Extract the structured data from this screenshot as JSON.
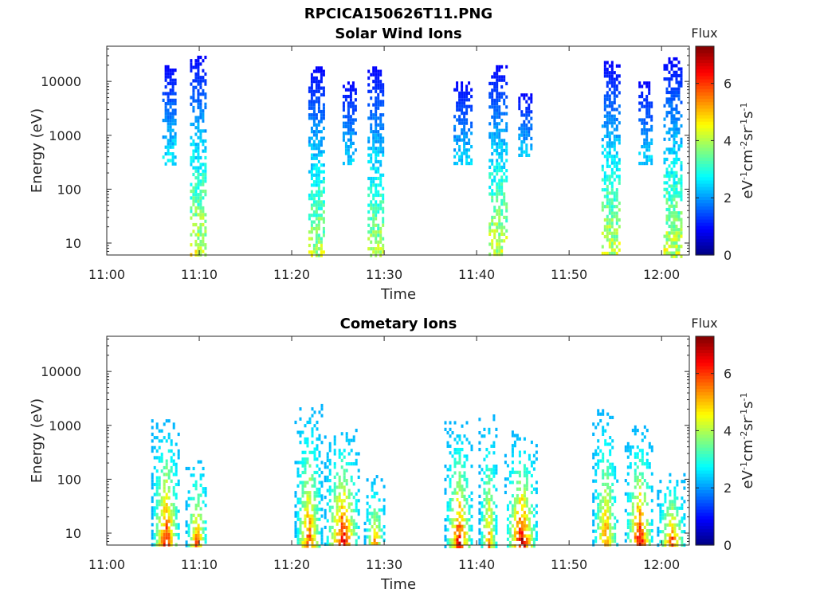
{
  "figure_title": "RPCICA150626T11.PNG",
  "chart_data": [
    {
      "type": "heatmap",
      "title": "Solar Wind Ions",
      "xlabel": "Time",
      "ylabel": "Energy (eV)",
      "y_scale": "log",
      "ylim": [
        6,
        45000
      ],
      "xlim": [
        "11:00",
        "12:03"
      ],
      "x_ticks": [
        "11:00",
        "11:10",
        "11:20",
        "11:30",
        "11:40",
        "11:50",
        "12:00"
      ],
      "y_ticks": [
        "10",
        "100",
        "1000",
        "10000"
      ],
      "colorbar": {
        "title": "Flux",
        "label": "eV-1cm-2sr-1s-1",
        "range": [
          0,
          7.3
        ],
        "ticks": [
          "0",
          "2",
          "4",
          "6"
        ],
        "colormap": "jet"
      },
      "bursts": [
        {
          "start_min": 9.0,
          "end_min": 10.8,
          "emin": 6,
          "emax": 30000,
          "peak_flux": 4.5
        },
        {
          "start_min": 6.0,
          "end_min": 7.5,
          "emin": 300,
          "emax": 20000,
          "peak_flux": 2.8
        },
        {
          "start_min": 21.8,
          "end_min": 23.6,
          "emin": 6,
          "emax": 19000,
          "peak_flux": 4.2
        },
        {
          "start_min": 25.5,
          "end_min": 27.0,
          "emin": 300,
          "emax": 10000,
          "peak_flux": 2.6
        },
        {
          "start_min": 28.2,
          "end_min": 30.0,
          "emin": 6,
          "emax": 19000,
          "peak_flux": 4.2
        },
        {
          "start_min": 37.5,
          "end_min": 39.5,
          "emin": 300,
          "emax": 10000,
          "peak_flux": 2.6
        },
        {
          "start_min": 41.3,
          "end_min": 43.2,
          "emin": 6,
          "emax": 20000,
          "peak_flux": 4.4
        },
        {
          "start_min": 44.5,
          "end_min": 46.0,
          "emin": 400,
          "emax": 6000,
          "peak_flux": 2.6
        },
        {
          "start_min": 53.5,
          "end_min": 55.5,
          "emin": 6,
          "emax": 24000,
          "peak_flux": 4.4
        },
        {
          "start_min": 57.5,
          "end_min": 59.0,
          "emin": 300,
          "emax": 10000,
          "peak_flux": 2.6
        },
        {
          "start_min": 60.2,
          "end_min": 62.2,
          "emin": 6,
          "emax": 28000,
          "peak_flux": 4.4
        }
      ]
    },
    {
      "type": "heatmap",
      "title": "Cometary Ions",
      "xlabel": "Time",
      "ylabel": "Energy (eV)",
      "y_scale": "log",
      "ylim": [
        6,
        45000
      ],
      "xlim": [
        "11:00",
        "12:03"
      ],
      "x_ticks": [
        "11:00",
        "11:10",
        "11:20",
        "11:30",
        "11:40",
        "11:50",
        "12:00"
      ],
      "y_ticks": [
        "10",
        "100",
        "1000",
        "10000"
      ],
      "colorbar": {
        "title": "Flux",
        "label": "eV-1cm-2sr-1s-1",
        "range": [
          0,
          7.3
        ],
        "ticks": [
          "0",
          "2",
          "4",
          "6"
        ],
        "colormap": "jet"
      },
      "bursts": [
        {
          "start_min": 4.8,
          "end_min": 7.8,
          "emin": 6,
          "emax": 1300,
          "peak_flux": 7.0
        },
        {
          "start_min": 8.5,
          "end_min": 10.8,
          "emin": 6,
          "emax": 300,
          "peak_flux": 6.2
        },
        {
          "start_min": 20.3,
          "end_min": 23.2,
          "emin": 6,
          "emax": 2500,
          "peak_flux": 6.2
        },
        {
          "start_min": 23.5,
          "end_min": 27.3,
          "emin": 6,
          "emax": 1000,
          "peak_flux": 7.0
        },
        {
          "start_min": 27.8,
          "end_min": 30.0,
          "emin": 6,
          "emax": 120,
          "peak_flux": 5.8
        },
        {
          "start_min": 36.5,
          "end_min": 39.5,
          "emin": 6,
          "emax": 1200,
          "peak_flux": 6.8
        },
        {
          "start_min": 40.2,
          "end_min": 42.2,
          "emin": 6,
          "emax": 1600,
          "peak_flux": 5.6
        },
        {
          "start_min": 43.0,
          "end_min": 46.5,
          "emin": 6,
          "emax": 800,
          "peak_flux": 7.2
        },
        {
          "start_min": 52.5,
          "end_min": 55.2,
          "emin": 6,
          "emax": 2000,
          "peak_flux": 6.0
        },
        {
          "start_min": 56.0,
          "end_min": 59.0,
          "emin": 6,
          "emax": 1000,
          "peak_flux": 7.2
        },
        {
          "start_min": 59.5,
          "end_min": 62.5,
          "emin": 6,
          "emax": 150,
          "peak_flux": 6.4
        }
      ]
    }
  ]
}
